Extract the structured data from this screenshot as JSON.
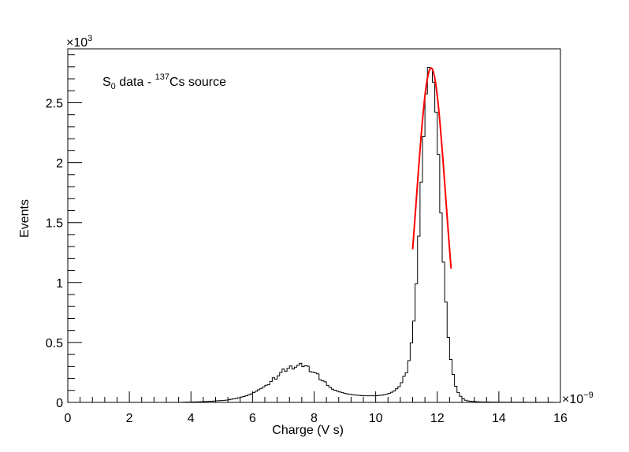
{
  "chart_data": {
    "type": "line",
    "style": "step-histogram",
    "title": "",
    "xlabel": "Charge (V s)",
    "ylabel": "Events",
    "xlim": [
      0,
      16
    ],
    "ylim": [
      0,
      2950
    ],
    "x_exponent_label": "×10",
    "x_exponent_power": "−9",
    "y_exponent_label": "×10",
    "y_exponent_power": "3",
    "x_ticks": [
      "0",
      "2",
      "4",
      "6",
      "8",
      "10",
      "12",
      "14",
      "16"
    ],
    "y_ticks": [
      "0",
      "0.5",
      "1",
      "1.5",
      "2",
      "2.5"
    ],
    "y_tick_values": [
      0,
      500,
      1000,
      1500,
      2000,
      2500
    ],
    "annotation": {
      "main": "S",
      "sub": "0",
      "mid": " data - ",
      "sup": "137",
      "tail": "Cs source"
    },
    "grid": false,
    "series": [
      {
        "color": "#000000",
        "bin_width": 0.08,
        "x": [
          3.6,
          4.0,
          4.4,
          4.8,
          5.2,
          5.5,
          5.8,
          6.0,
          6.2,
          6.4,
          6.6,
          6.8,
          7.0,
          7.2,
          7.4,
          7.6,
          7.7,
          7.8,
          8.0,
          8.2,
          8.4,
          8.6,
          8.8,
          9.0,
          9.2,
          9.4,
          9.6,
          9.8,
          10.0,
          10.2,
          10.4,
          10.6,
          10.8,
          10.9,
          11.0,
          11.1,
          11.2,
          11.3,
          11.4,
          11.5,
          11.6,
          11.7,
          11.8,
          11.9,
          12.0,
          12.1,
          12.2,
          12.3,
          12.4,
          12.5,
          12.6,
          12.7,
          12.8,
          12.9,
          13.0,
          13.2,
          13.4,
          13.6,
          14.0,
          14.5,
          15.0,
          15.5,
          16.0
        ],
        "y": [
          0,
          3,
          6,
          12,
          20,
          35,
          55,
          75,
          105,
          135,
          175,
          220,
          260,
          290,
          300,
          310,
          310,
          290,
          250,
          200,
          150,
          110,
          90,
          75,
          65,
          60,
          55,
          55,
          55,
          60,
          70,
          95,
          140,
          185,
          260,
          370,
          560,
          900,
          1380,
          1930,
          2450,
          2760,
          2820,
          2650,
          2250,
          1700,
          1170,
          740,
          440,
          250,
          135,
          70,
          38,
          20,
          12,
          7,
          4,
          3,
          2,
          2,
          1,
          1,
          0
        ]
      },
      {
        "color": "#ff0000",
        "kind": "gaussian-fit",
        "x_range": [
          11.2,
          12.45
        ],
        "mean": 11.8,
        "sigma": 0.48,
        "amplitude": 2790
      }
    ]
  }
}
